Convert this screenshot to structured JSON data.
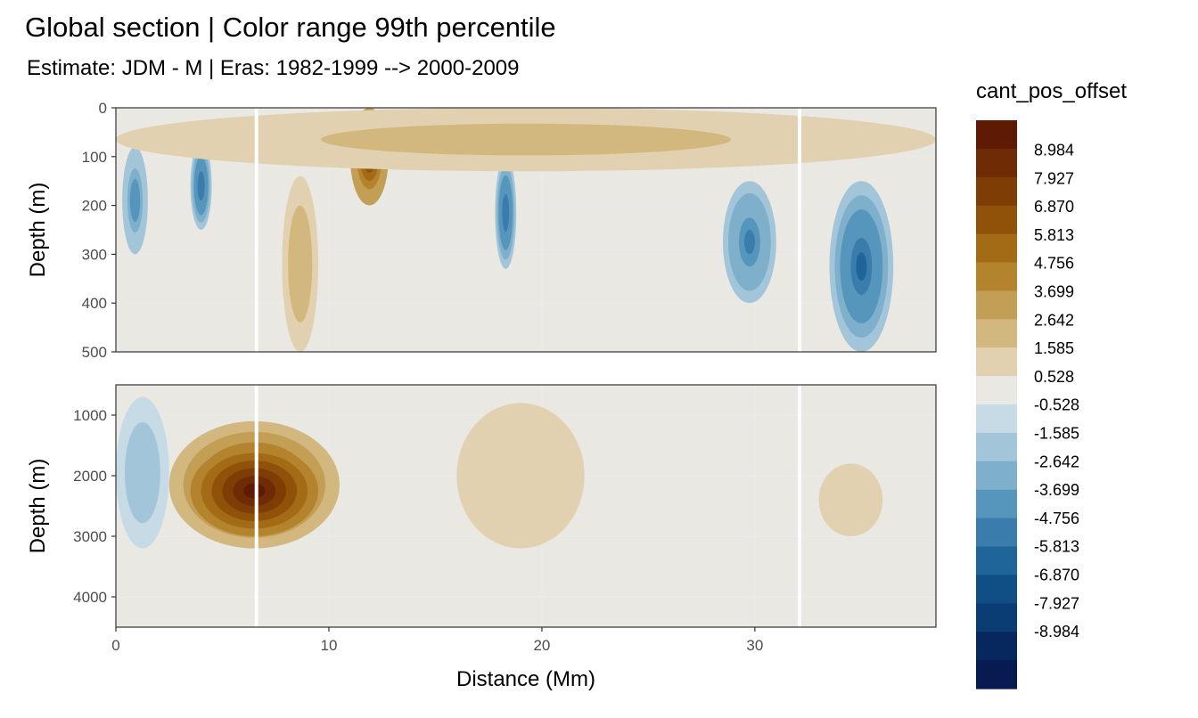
{
  "chart_data": {
    "type": "heatmap",
    "title": "Global section | Color range 99th percentile",
    "subtitle": "Estimate: JDM - M | Eras: 1982-1999 --> 2000-2009",
    "xlabel": "Distance (Mm)",
    "ylabel": "Depth (m)",
    "xlim": [
      0,
      38.5
    ],
    "x_ticks": [
      0,
      10,
      20,
      30
    ],
    "grid": true,
    "legend_position": "right",
    "legend_title": "cant_pos_offset",
    "legend": {
      "labels": [
        "8.984",
        "7.927",
        "6.870",
        "5.813",
        "4.756",
        "3.699",
        "2.642",
        "1.585",
        "0.528",
        "-0.528",
        "-1.585",
        "-2.642",
        "-3.699",
        "-4.756",
        "-5.813",
        "-6.870",
        "-7.927",
        "-8.984"
      ],
      "colors": [
        "#5e1a03",
        "#6f2c04",
        "#7e3d05",
        "#8f5208",
        "#a36b16",
        "#b4832e",
        "#c39e55",
        "#d2b77f",
        "#e2d1b0",
        "#e9e8e3",
        "#c7dbe7",
        "#a3c5d9",
        "#7eb0cc",
        "#5796bc",
        "#3a7cab",
        "#1f6599",
        "#0f4f86",
        "#0b3d75",
        "#07285f",
        "#071b52"
      ]
    },
    "panels": [
      {
        "name": "upper",
        "ylim": [
          0,
          500
        ],
        "y_ticks": [
          0,
          100,
          200,
          300,
          400,
          500
        ],
        "features": [
          {
            "x": [
              3.5,
              4.5
            ],
            "depth": [
              70,
              250
            ],
            "value": -5.8
          },
          {
            "x": [
              0.3,
              1.5
            ],
            "depth": [
              80,
              300
            ],
            "value": -4.5
          },
          {
            "x": [
              7.8,
              9.5
            ],
            "depth": [
              140,
              500
            ],
            "value": 2.6
          },
          {
            "x": [
              11.0,
              12.8
            ],
            "depth": [
              0,
              200
            ],
            "value": 6.9
          },
          {
            "x": [
              12.8,
              16.0
            ],
            "depth": [
              20,
              100
            ],
            "value": 3.7
          },
          {
            "x": [
              17.8,
              18.8
            ],
            "depth": [
              100,
              330
            ],
            "value": -5.8
          },
          {
            "x": [
              28.5,
              31.0
            ],
            "depth": [
              150,
              400
            ],
            "value": -5.0
          },
          {
            "x": [
              33.5,
              36.5
            ],
            "depth": [
              150,
              500
            ],
            "value": -6.0
          },
          {
            "x": [
              0.0,
              38.5
            ],
            "depth": [
              0,
              130
            ],
            "value": 1.6
          }
        ]
      },
      {
        "name": "lower",
        "ylim": [
          500,
          4500
        ],
        "y_ticks": [
          1000,
          2000,
          3000,
          4000
        ],
        "features": [
          {
            "x": [
              2.5,
              10.5
            ],
            "depth": [
              1100,
              3200
            ],
            "value": 6.0
          },
          {
            "x": [
              3.5,
              9.5
            ],
            "depth": [
              1500,
              3000
            ],
            "value": 9.0
          },
          {
            "x": [
              0.0,
              2.5
            ],
            "depth": [
              700,
              3200
            ],
            "value": -2.6
          },
          {
            "x": [
              16.0,
              22.0
            ],
            "depth": [
              800,
              3200
            ],
            "value": 0.9
          },
          {
            "x": [
              33.0,
              36.0
            ],
            "depth": [
              1800,
              3000
            ],
            "value": 1.0
          }
        ]
      }
    ],
    "missing_columns_x": [
      6.6,
      32.1
    ]
  }
}
